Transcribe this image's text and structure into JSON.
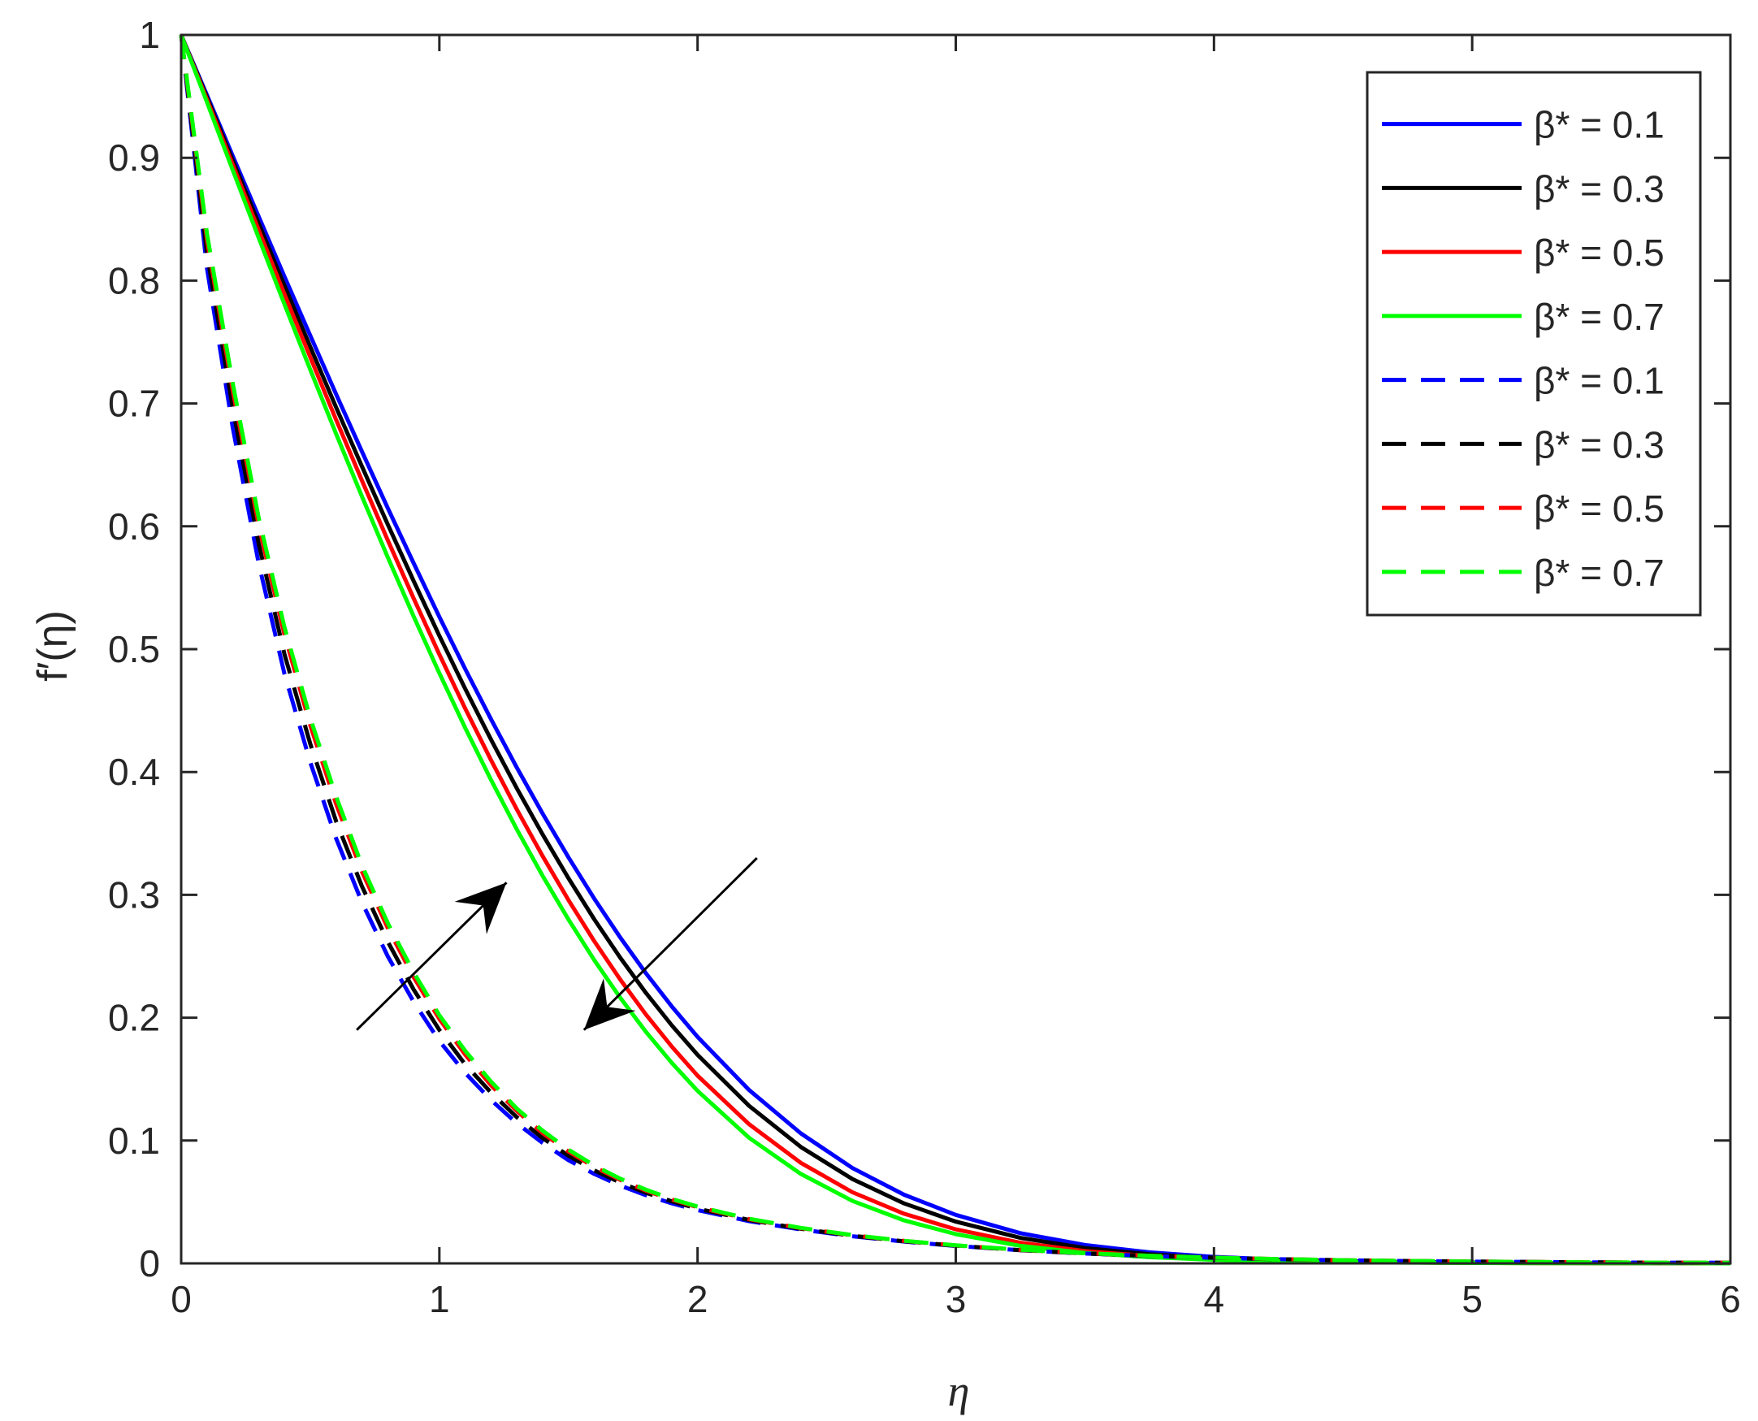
{
  "chart_data": {
    "type": "line",
    "title": "",
    "xlabel": "η",
    "ylabel": "f′(η)",
    "xlim": [
      0,
      6
    ],
    "ylim": [
      0,
      1
    ],
    "xticks": [
      "0",
      "1",
      "2",
      "3",
      "4",
      "5",
      "6"
    ],
    "yticks": [
      "0",
      "0.1",
      "0.2",
      "0.3",
      "0.4",
      "0.5",
      "0.6",
      "0.7",
      "0.8",
      "0.9",
      "1"
    ],
    "grid": false,
    "legend_position": "top-right",
    "x": [
      0,
      0.1,
      0.2,
      0.3,
      0.4,
      0.5,
      0.6,
      0.7,
      0.8,
      0.9,
      1.0,
      1.1,
      1.2,
      1.3,
      1.4,
      1.5,
      1.6,
      1.7,
      1.8,
      1.9,
      2.0,
      2.2,
      2.4,
      2.6,
      2.8,
      3.0,
      3.25,
      3.5,
      3.75,
      4.0,
      4.25,
      4.5,
      4.75,
      5.0,
      5.25,
      5.5,
      5.75,
      6.0
    ],
    "series": [
      {
        "name": "β* = 0.1",
        "color": "#0000ff",
        "dash": "solid",
        "values": [
          1.0,
          0.951,
          0.9013,
          0.8522,
          0.8034,
          0.7553,
          0.7076,
          0.6609,
          0.6149,
          0.5701,
          0.5263,
          0.4839,
          0.443,
          0.4036,
          0.3661,
          0.3305,
          0.2969,
          0.2655,
          0.2362,
          0.2092,
          0.1843,
          0.1411,
          0.1058,
          0.0776,
          0.0559,
          0.0395,
          0.0246,
          0.015,
          0.009,
          0.0053,
          0.0031,
          0.0018,
          0.0011,
          0.0007,
          0.0004,
          0.0003,
          0.0002,
          0.0001
        ]
      },
      {
        "name": "β* = 0.3",
        "color": "#000000",
        "dash": "solid",
        "values": [
          1.0,
          0.9492,
          0.8977,
          0.8466,
          0.796,
          0.7462,
          0.6969,
          0.6488,
          0.6015,
          0.5556,
          0.5109,
          0.4678,
          0.4264,
          0.3867,
          0.3491,
          0.3135,
          0.2801,
          0.249,
          0.2202,
          0.1938,
          0.1697,
          0.1282,
          0.0948,
          0.0686,
          0.0488,
          0.034,
          0.0208,
          0.0125,
          0.0074,
          0.0043,
          0.0025,
          0.0015,
          0.0009,
          0.0005,
          0.0003,
          0.0002,
          0.0001,
          0.0001
        ]
      },
      {
        "name": "β* = 0.5",
        "color": "#ff0000",
        "dash": "solid",
        "values": [
          1.0,
          0.9474,
          0.8943,
          0.8413,
          0.7891,
          0.7377,
          0.6868,
          0.6373,
          0.5887,
          0.5415,
          0.4958,
          0.4518,
          0.4097,
          0.3695,
          0.3315,
          0.2957,
          0.2623,
          0.2312,
          0.2026,
          0.1765,
          0.1528,
          0.1132,
          0.0818,
          0.0579,
          0.0404,
          0.0277,
          0.0168,
          0.01,
          0.0059,
          0.0034,
          0.002,
          0.0012,
          0.0007,
          0.0004,
          0.0002,
          0.0001,
          0.0001,
          0.0
        ]
      },
      {
        "name": "β* = 0.7",
        "color": "#00ff00",
        "dash": "solid",
        "values": [
          1.0,
          0.9452,
          0.8898,
          0.8349,
          0.7808,
          0.7276,
          0.6753,
          0.6244,
          0.5748,
          0.5268,
          0.4805,
          0.436,
          0.3936,
          0.3533,
          0.3154,
          0.2799,
          0.2469,
          0.2164,
          0.1885,
          0.1632,
          0.1404,
          0.1022,
          0.0728,
          0.0508,
          0.035,
          0.0238,
          0.0143,
          0.0085,
          0.005,
          0.0029,
          0.0017,
          0.001,
          0.0006,
          0.0003,
          0.0002,
          0.0001,
          0.0001,
          0.0
        ]
      },
      {
        "name": "β* = 0.1",
        "color": "#0000ff",
        "dash": "dashed",
        "values": [
          1.0,
          0.81,
          0.68,
          0.57,
          0.48,
          0.408,
          0.346,
          0.294,
          0.25,
          0.213,
          0.181,
          0.155,
          0.133,
          0.114,
          0.098,
          0.084,
          0.0728,
          0.0634,
          0.0555,
          0.0489,
          0.0433,
          0.0344,
          0.0276,
          0.0221,
          0.0177,
          0.0142,
          0.0107,
          0.008,
          0.006,
          0.0045,
          0.0034,
          0.0025,
          0.0019,
          0.0014,
          0.0011,
          0.0008,
          0.0006,
          0.0005
        ]
      },
      {
        "name": "β* = 0.3",
        "color": "#000000",
        "dash": "dashed",
        "values": [
          1.0,
          0.822,
          0.696,
          0.586,
          0.496,
          0.423,
          0.36,
          0.307,
          0.262,
          0.223,
          0.19,
          0.162,
          0.139,
          0.119,
          0.102,
          0.0876,
          0.0757,
          0.0658,
          0.0575,
          0.0505,
          0.0446,
          0.0353,
          0.0282,
          0.0225,
          0.018,
          0.0144,
          0.0108,
          0.0081,
          0.0061,
          0.0046,
          0.0034,
          0.0026,
          0.0019,
          0.0015,
          0.0011,
          0.0008,
          0.0006,
          0.0005
        ]
      },
      {
        "name": "β* = 0.5",
        "color": "#ff0000",
        "dash": "dashed",
        "values": [
          1.0,
          0.833,
          0.71,
          0.601,
          0.512,
          0.438,
          0.374,
          0.319,
          0.273,
          0.233,
          0.199,
          0.17,
          0.145,
          0.124,
          0.106,
          0.091,
          0.0785,
          0.068,
          0.0592,
          0.0519,
          0.0457,
          0.036,
          0.0287,
          0.0229,
          0.0183,
          0.0146,
          0.011,
          0.0083,
          0.0062,
          0.0046,
          0.0035,
          0.0026,
          0.002,
          0.0015,
          0.0011,
          0.0008,
          0.0006,
          0.0005
        ]
      },
      {
        "name": "β* = 0.7",
        "color": "#00ff00",
        "dash": "dashed",
        "values": [
          1.0,
          0.838,
          0.716,
          0.607,
          0.518,
          0.444,
          0.38,
          0.324,
          0.277,
          0.237,
          0.202,
          0.173,
          0.148,
          0.126,
          0.108,
          0.0925,
          0.0797,
          0.069,
          0.06,
          0.0525,
          0.0462,
          0.0363,
          0.0289,
          0.023,
          0.0184,
          0.0147,
          0.0111,
          0.0083,
          0.0062,
          0.0047,
          0.0035,
          0.0026,
          0.002,
          0.0015,
          0.0011,
          0.0008,
          0.0006,
          0.0005
        ]
      }
    ],
    "annotations": [
      {
        "type": "arrow",
        "from": [
          0.68,
          0.19
        ],
        "to": [
          1.26,
          0.31
        ]
      },
      {
        "type": "arrow",
        "from": [
          2.23,
          0.33
        ],
        "to": [
          1.56,
          0.19
        ]
      }
    ]
  }
}
